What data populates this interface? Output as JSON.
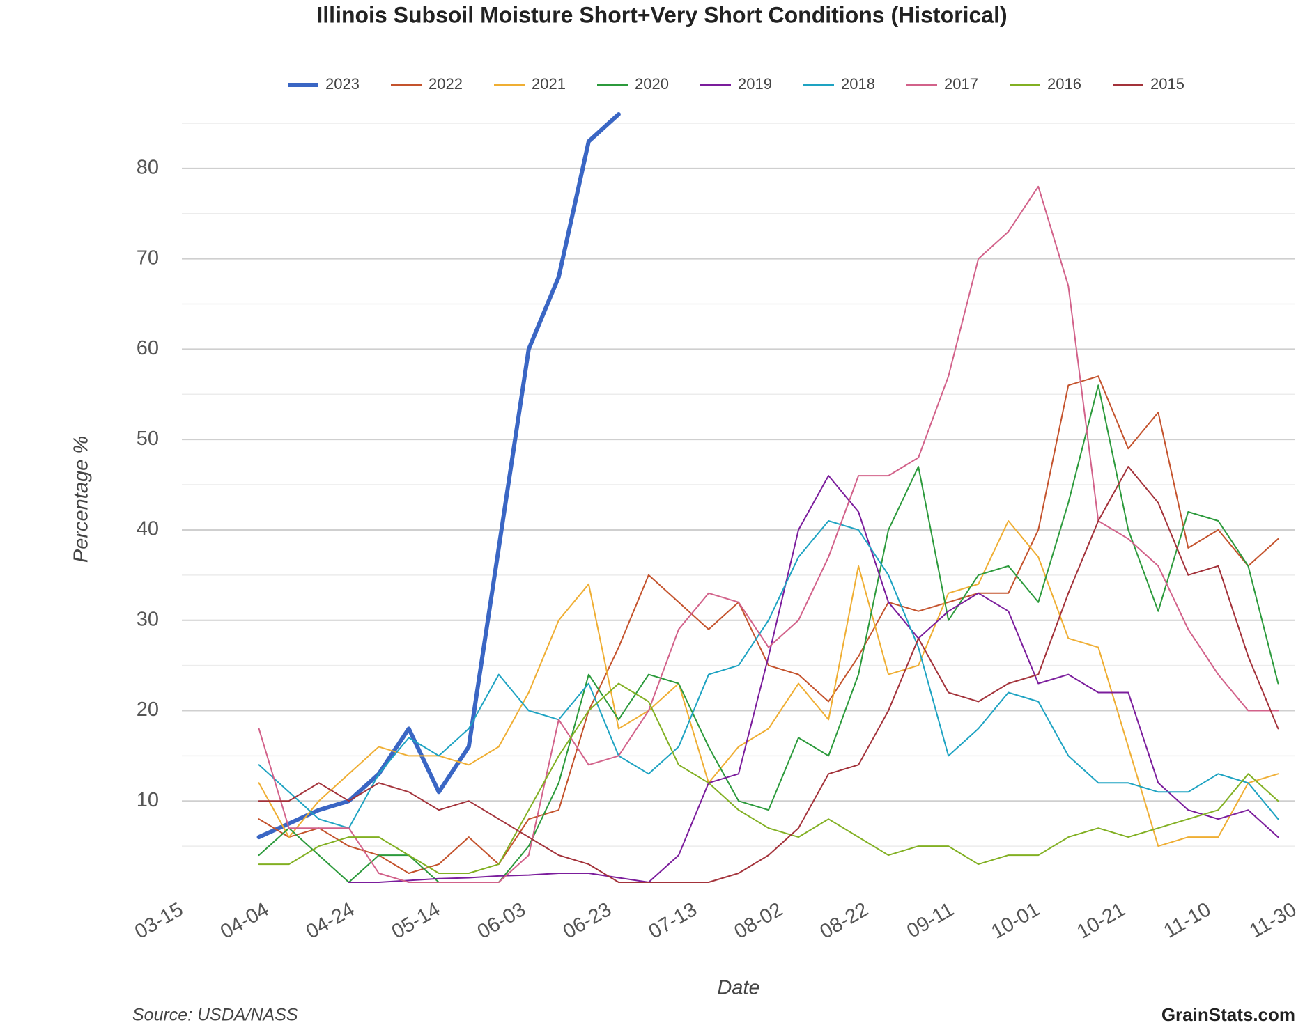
{
  "chart_data": {
    "type": "line",
    "title": "Illinois Subsoil Moisture Short+Very Short Conditions (Historical)",
    "x_label": "Date",
    "y_label": "Percentage %",
    "source": "Source: USDA/NASS",
    "brand": "GrainStats.com",
    "x": [
      "04-02",
      "04-09",
      "04-16",
      "04-23",
      "04-30",
      "05-07",
      "05-14",
      "05-21",
      "05-28",
      "06-04",
      "06-11",
      "06-18",
      "06-25",
      "07-02",
      "07-09",
      "07-16",
      "07-23",
      "07-30",
      "08-06",
      "08-13",
      "08-20",
      "08-27",
      "09-03",
      "09-10",
      "09-17",
      "09-24",
      "10-01",
      "10-08",
      "10-15",
      "10-22",
      "10-29",
      "11-05",
      "11-12",
      "11-19",
      "11-26"
    ],
    "xlim": [
      "03-15",
      "11-30"
    ],
    "xticks": [
      "03-15",
      "04-04",
      "04-24",
      "05-14",
      "06-03",
      "06-23",
      "07-13",
      "08-02",
      "08-22",
      "09-11",
      "10-01",
      "10-21",
      "11-10",
      "11-30"
    ],
    "ylim": [
      0,
      85
    ],
    "yticks": [
      10,
      20,
      30,
      40,
      50,
      60,
      70,
      80
    ],
    "minor_yticks": [
      5,
      15,
      25,
      35,
      45,
      55,
      65,
      75,
      85
    ],
    "grid": true,
    "legend": "top",
    "series": [
      {
        "name": "2023",
        "color": "#3a66c4",
        "width": 6,
        "values": [
          6,
          7.5,
          9,
          10,
          13,
          18,
          11,
          16,
          38,
          60,
          68,
          83,
          86,
          null,
          null,
          null,
          null,
          null,
          null,
          null,
          null,
          null,
          null,
          null,
          null,
          null,
          null,
          null,
          null,
          null,
          null,
          null,
          null,
          null,
          null
        ]
      },
      {
        "name": "2022",
        "color": "#c4532d",
        "width": 2,
        "values": [
          8,
          6,
          7,
          5,
          4,
          2,
          3,
          6,
          3,
          8,
          9,
          20,
          27,
          35,
          32,
          29,
          32,
          25,
          24,
          21,
          26,
          32,
          31,
          32,
          33,
          33,
          40,
          56,
          57,
          49,
          53,
          38,
          40,
          36,
          39
        ]
      },
      {
        "name": "2021",
        "color": "#efae33",
        "width": 2,
        "values": [
          12,
          6,
          10,
          13,
          16,
          15,
          15,
          14,
          16,
          22,
          30,
          34,
          18,
          20,
          23,
          12,
          16,
          18,
          23,
          19,
          36,
          24,
          25,
          33,
          34,
          41,
          37,
          28,
          27,
          16,
          5,
          6,
          6,
          12,
          13
        ]
      },
      {
        "name": "2020",
        "color": "#2c9a3c",
        "width": 2,
        "values": [
          4,
          7,
          4,
          1,
          4,
          4,
          1,
          1,
          1,
          5,
          12,
          24,
          19,
          24,
          23,
          16,
          10,
          9,
          17,
          15,
          24,
          40,
          47,
          30,
          35,
          36,
          32,
          43,
          56,
          40,
          31,
          42,
          41,
          36,
          23
        ]
      },
      {
        "name": "2019",
        "color": "#7b1d9c",
        "width": 2,
        "values": [
          null,
          null,
          null,
          1,
          1,
          1.2,
          1.4,
          1.5,
          1.7,
          1.8,
          2,
          2,
          1.5,
          1,
          4,
          12,
          13,
          26,
          40,
          46,
          42,
          32,
          28,
          31,
          33,
          31,
          23,
          24,
          22,
          22,
          12,
          9,
          8,
          9,
          6
        ]
      },
      {
        "name": "2018",
        "color": "#1ea3c2",
        "width": 2,
        "values": [
          14,
          11,
          8,
          7,
          13,
          17,
          15,
          18,
          24,
          20,
          19,
          23,
          15,
          13,
          16,
          24,
          25,
          30,
          37,
          41,
          40,
          35,
          27,
          15,
          18,
          22,
          21,
          15,
          12,
          12,
          11,
          11,
          13,
          12,
          8
        ]
      },
      {
        "name": "2017",
        "color": "#d2628a",
        "width": 2,
        "values": [
          18,
          7,
          7,
          7,
          2,
          1,
          1,
          1,
          1,
          4,
          19,
          14,
          15,
          20,
          29,
          33,
          32,
          27,
          30,
          37,
          46,
          46,
          48,
          57,
          70,
          73,
          78,
          67,
          41,
          39,
          36,
          29,
          24,
          20,
          20
        ]
      },
      {
        "name": "2016",
        "color": "#82b023",
        "width": 2,
        "values": [
          3,
          3,
          5,
          6,
          6,
          4,
          2,
          2,
          3,
          9,
          15,
          20,
          23,
          21,
          14,
          12,
          9,
          7,
          6,
          8,
          6,
          4,
          5,
          5,
          3,
          4,
          4,
          6,
          7,
          6,
          7,
          8,
          9,
          13,
          10
        ]
      },
      {
        "name": "2015",
        "color": "#a3323a",
        "width": 2,
        "values": [
          10,
          10,
          12,
          10,
          12,
          11,
          9,
          10,
          8,
          6,
          4,
          3,
          1,
          1,
          1,
          1,
          2,
          4,
          7,
          13,
          14,
          20,
          28,
          22,
          21,
          23,
          24,
          33,
          41,
          47,
          43,
          35,
          36,
          26,
          18
        ]
      }
    ]
  }
}
